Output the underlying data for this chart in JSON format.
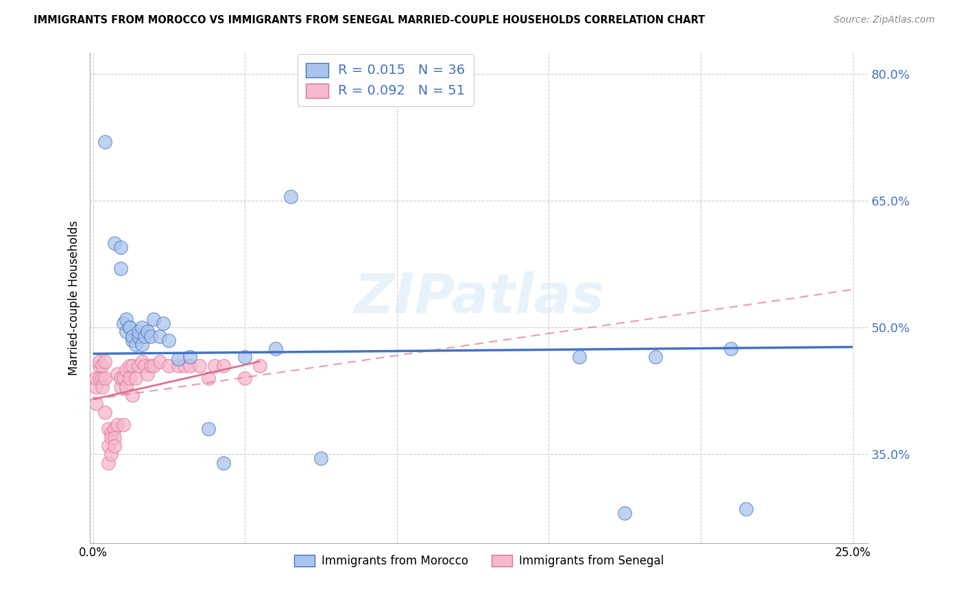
{
  "title": "IMMIGRANTS FROM MOROCCO VS IMMIGRANTS FROM SENEGAL MARRIED-COUPLE HOUSEHOLDS CORRELATION CHART",
  "source": "Source: ZipAtlas.com",
  "ylabel": "Married-couple Households",
  "xlabel": "",
  "xlim": [
    -0.001,
    0.255
  ],
  "ylim": [
    0.245,
    0.825
  ],
  "yticks": [
    0.35,
    0.5,
    0.65,
    0.8
  ],
  "ytick_labels": [
    "35.0%",
    "50.0%",
    "65.0%",
    "80.0%"
  ],
  "xticks": [
    0.0,
    0.05,
    0.1,
    0.15,
    0.2,
    0.25
  ],
  "xtick_labels": [
    "0.0%",
    "",
    "",
    "",
    "",
    "25.0%"
  ],
  "morocco_color": "#aac4ec",
  "senegal_color": "#f5b8cc",
  "morocco_edge_color": "#4472c4",
  "senegal_edge_color": "#e07090",
  "legend_r_morocco": "R = 0.015",
  "legend_n_morocco": "N = 36",
  "legend_r_senegal": "R = 0.092",
  "legend_n_senegal": "N = 51",
  "legend_label_morocco": "Immigrants from Morocco",
  "legend_label_senegal": "Immigrants from Senegal",
  "watermark": "ZIPatlas",
  "background_color": "#ffffff",
  "grid_color": "#cccccc",
  "morocco_x": [
    0.004,
    0.007,
    0.009,
    0.009,
    0.01,
    0.011,
    0.011,
    0.012,
    0.012,
    0.013,
    0.013,
    0.014,
    0.015,
    0.015,
    0.016,
    0.016,
    0.017,
    0.018,
    0.019,
    0.02,
    0.022,
    0.023,
    0.025,
    0.028,
    0.032,
    0.038,
    0.043,
    0.05,
    0.06,
    0.065,
    0.075,
    0.16,
    0.175,
    0.185,
    0.21,
    0.215
  ],
  "morocco_y": [
    0.72,
    0.6,
    0.595,
    0.57,
    0.505,
    0.51,
    0.495,
    0.5,
    0.5,
    0.485,
    0.49,
    0.48,
    0.49,
    0.495,
    0.48,
    0.5,
    0.49,
    0.495,
    0.49,
    0.51,
    0.49,
    0.505,
    0.485,
    0.463,
    0.465,
    0.38,
    0.34,
    0.465,
    0.475,
    0.655,
    0.345,
    0.465,
    0.28,
    0.465,
    0.475,
    0.285
  ],
  "senegal_x": [
    0.001,
    0.001,
    0.001,
    0.002,
    0.002,
    0.002,
    0.003,
    0.003,
    0.003,
    0.004,
    0.004,
    0.004,
    0.005,
    0.005,
    0.005,
    0.006,
    0.006,
    0.006,
    0.007,
    0.007,
    0.007,
    0.008,
    0.008,
    0.009,
    0.009,
    0.01,
    0.01,
    0.011,
    0.011,
    0.012,
    0.012,
    0.013,
    0.013,
    0.014,
    0.015,
    0.016,
    0.017,
    0.018,
    0.019,
    0.02,
    0.022,
    0.025,
    0.028,
    0.03,
    0.032,
    0.035,
    0.038,
    0.04,
    0.043,
    0.05,
    0.055
  ],
  "senegal_y": [
    0.43,
    0.44,
    0.41,
    0.455,
    0.46,
    0.44,
    0.44,
    0.455,
    0.43,
    0.46,
    0.44,
    0.4,
    0.38,
    0.36,
    0.34,
    0.375,
    0.37,
    0.35,
    0.38,
    0.37,
    0.36,
    0.445,
    0.385,
    0.43,
    0.44,
    0.44,
    0.385,
    0.45,
    0.43,
    0.455,
    0.44,
    0.455,
    0.42,
    0.44,
    0.455,
    0.46,
    0.455,
    0.445,
    0.455,
    0.455,
    0.46,
    0.455,
    0.455,
    0.455,
    0.455,
    0.455,
    0.44,
    0.455,
    0.455,
    0.44,
    0.455
  ],
  "morocco_trend_x": [
    0.0,
    0.25
  ],
  "morocco_trend_y": [
    0.469,
    0.477
  ],
  "senegal_solid_trend_x": [
    0.0,
    0.055
  ],
  "senegal_solid_trend_y": [
    0.415,
    0.46
  ],
  "senegal_dash_trend_x": [
    0.0,
    0.25
  ],
  "senegal_dash_trend_y": [
    0.415,
    0.545
  ]
}
